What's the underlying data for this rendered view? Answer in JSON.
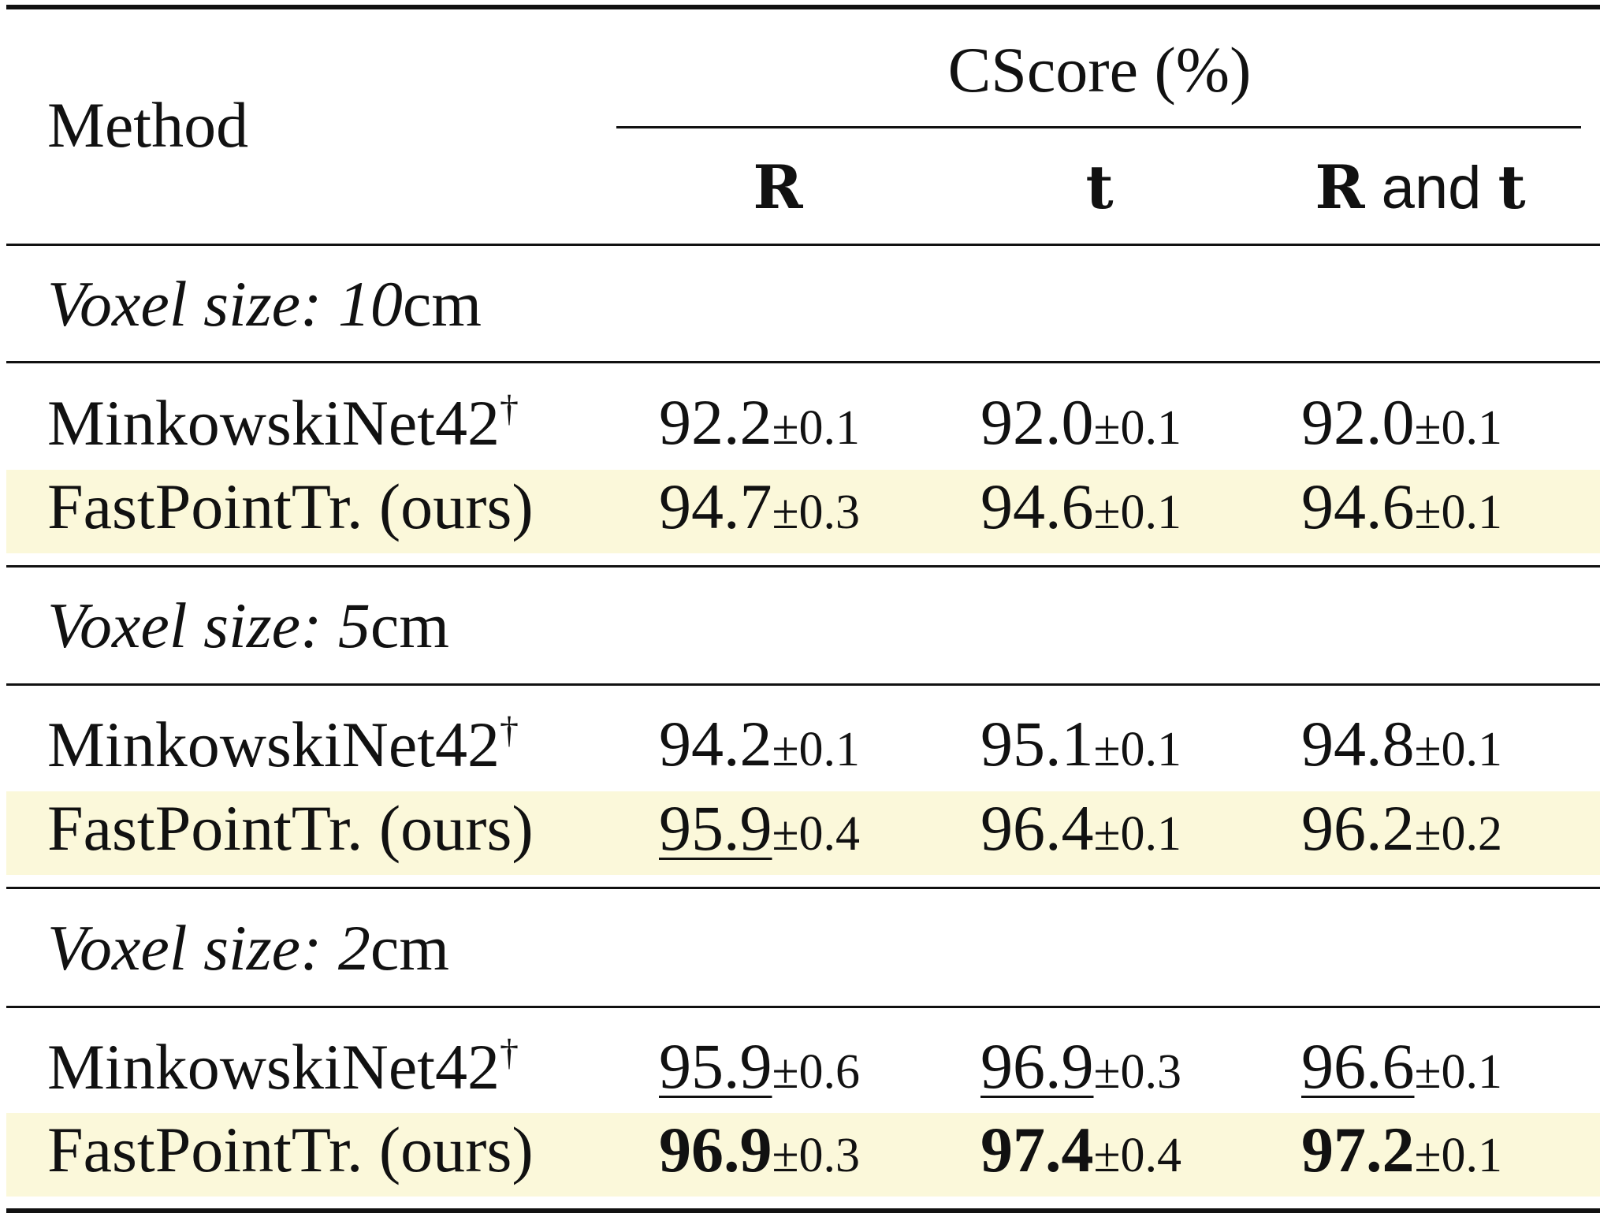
{
  "header": {
    "method": "Method",
    "group": "CScore (%)",
    "columns": [
      {
        "bold_a": "R",
        "mid": "",
        "bold_b": ""
      },
      {
        "bold_a": "t",
        "mid": "",
        "bold_b": ""
      },
      {
        "bold_a": "R",
        "mid": " and ",
        "bold_b": "t"
      }
    ]
  },
  "sections": [
    {
      "title": "Voxel size: 10",
      "unit": "cm",
      "rows": [
        {
          "method": "MinkowskiNet42",
          "sup": "†",
          "highlight": false,
          "cells": [
            {
              "value": "92.2",
              "pm": "±0.1",
              "bold": false,
              "underline": false
            },
            {
              "value": "92.0",
              "pm": "±0.1",
              "bold": false,
              "underline": false
            },
            {
              "value": "92.0",
              "pm": "±0.1",
              "bold": false,
              "underline": false
            }
          ]
        },
        {
          "method": "FastPointTr. (ours)",
          "sup": "",
          "highlight": true,
          "cells": [
            {
              "value": "94.7",
              "pm": "±0.3",
              "bold": false,
              "underline": false
            },
            {
              "value": "94.6",
              "pm": "±0.1",
              "bold": false,
              "underline": false
            },
            {
              "value": "94.6",
              "pm": "±0.1",
              "bold": false,
              "underline": false
            }
          ]
        }
      ]
    },
    {
      "title": "Voxel size: 5",
      "unit": "cm",
      "rows": [
        {
          "method": "MinkowskiNet42",
          "sup": "†",
          "highlight": false,
          "cells": [
            {
              "value": "94.2",
              "pm": "±0.1",
              "bold": false,
              "underline": false
            },
            {
              "value": "95.1",
              "pm": "±0.1",
              "bold": false,
              "underline": false
            },
            {
              "value": "94.8",
              "pm": "±0.1",
              "bold": false,
              "underline": false
            }
          ]
        },
        {
          "method": "FastPointTr. (ours)",
          "sup": "",
          "highlight": true,
          "cells": [
            {
              "value": "95.9",
              "pm": "±0.4",
              "bold": false,
              "underline": true
            },
            {
              "value": "96.4",
              "pm": "±0.1",
              "bold": false,
              "underline": false
            },
            {
              "value": "96.2",
              "pm": "±0.2",
              "bold": false,
              "underline": false
            }
          ]
        }
      ]
    },
    {
      "title": "Voxel size: 2",
      "unit": "cm",
      "rows": [
        {
          "method": "MinkowskiNet42",
          "sup": "†",
          "highlight": false,
          "cells": [
            {
              "value": "95.9",
              "pm": "±0.6",
              "bold": false,
              "underline": true
            },
            {
              "value": "96.9",
              "pm": "±0.3",
              "bold": false,
              "underline": true
            },
            {
              "value": "96.6",
              "pm": "±0.1",
              "bold": false,
              "underline": true
            }
          ]
        },
        {
          "method": "FastPointTr. (ours)",
          "sup": "",
          "highlight": true,
          "cells": [
            {
              "value": "96.9",
              "pm": "±0.3",
              "bold": true,
              "underline": false
            },
            {
              "value": "97.4",
              "pm": "±0.4",
              "bold": true,
              "underline": false
            },
            {
              "value": "97.2",
              "pm": "±0.1",
              "bold": true,
              "underline": false
            }
          ]
        }
      ]
    }
  ]
}
